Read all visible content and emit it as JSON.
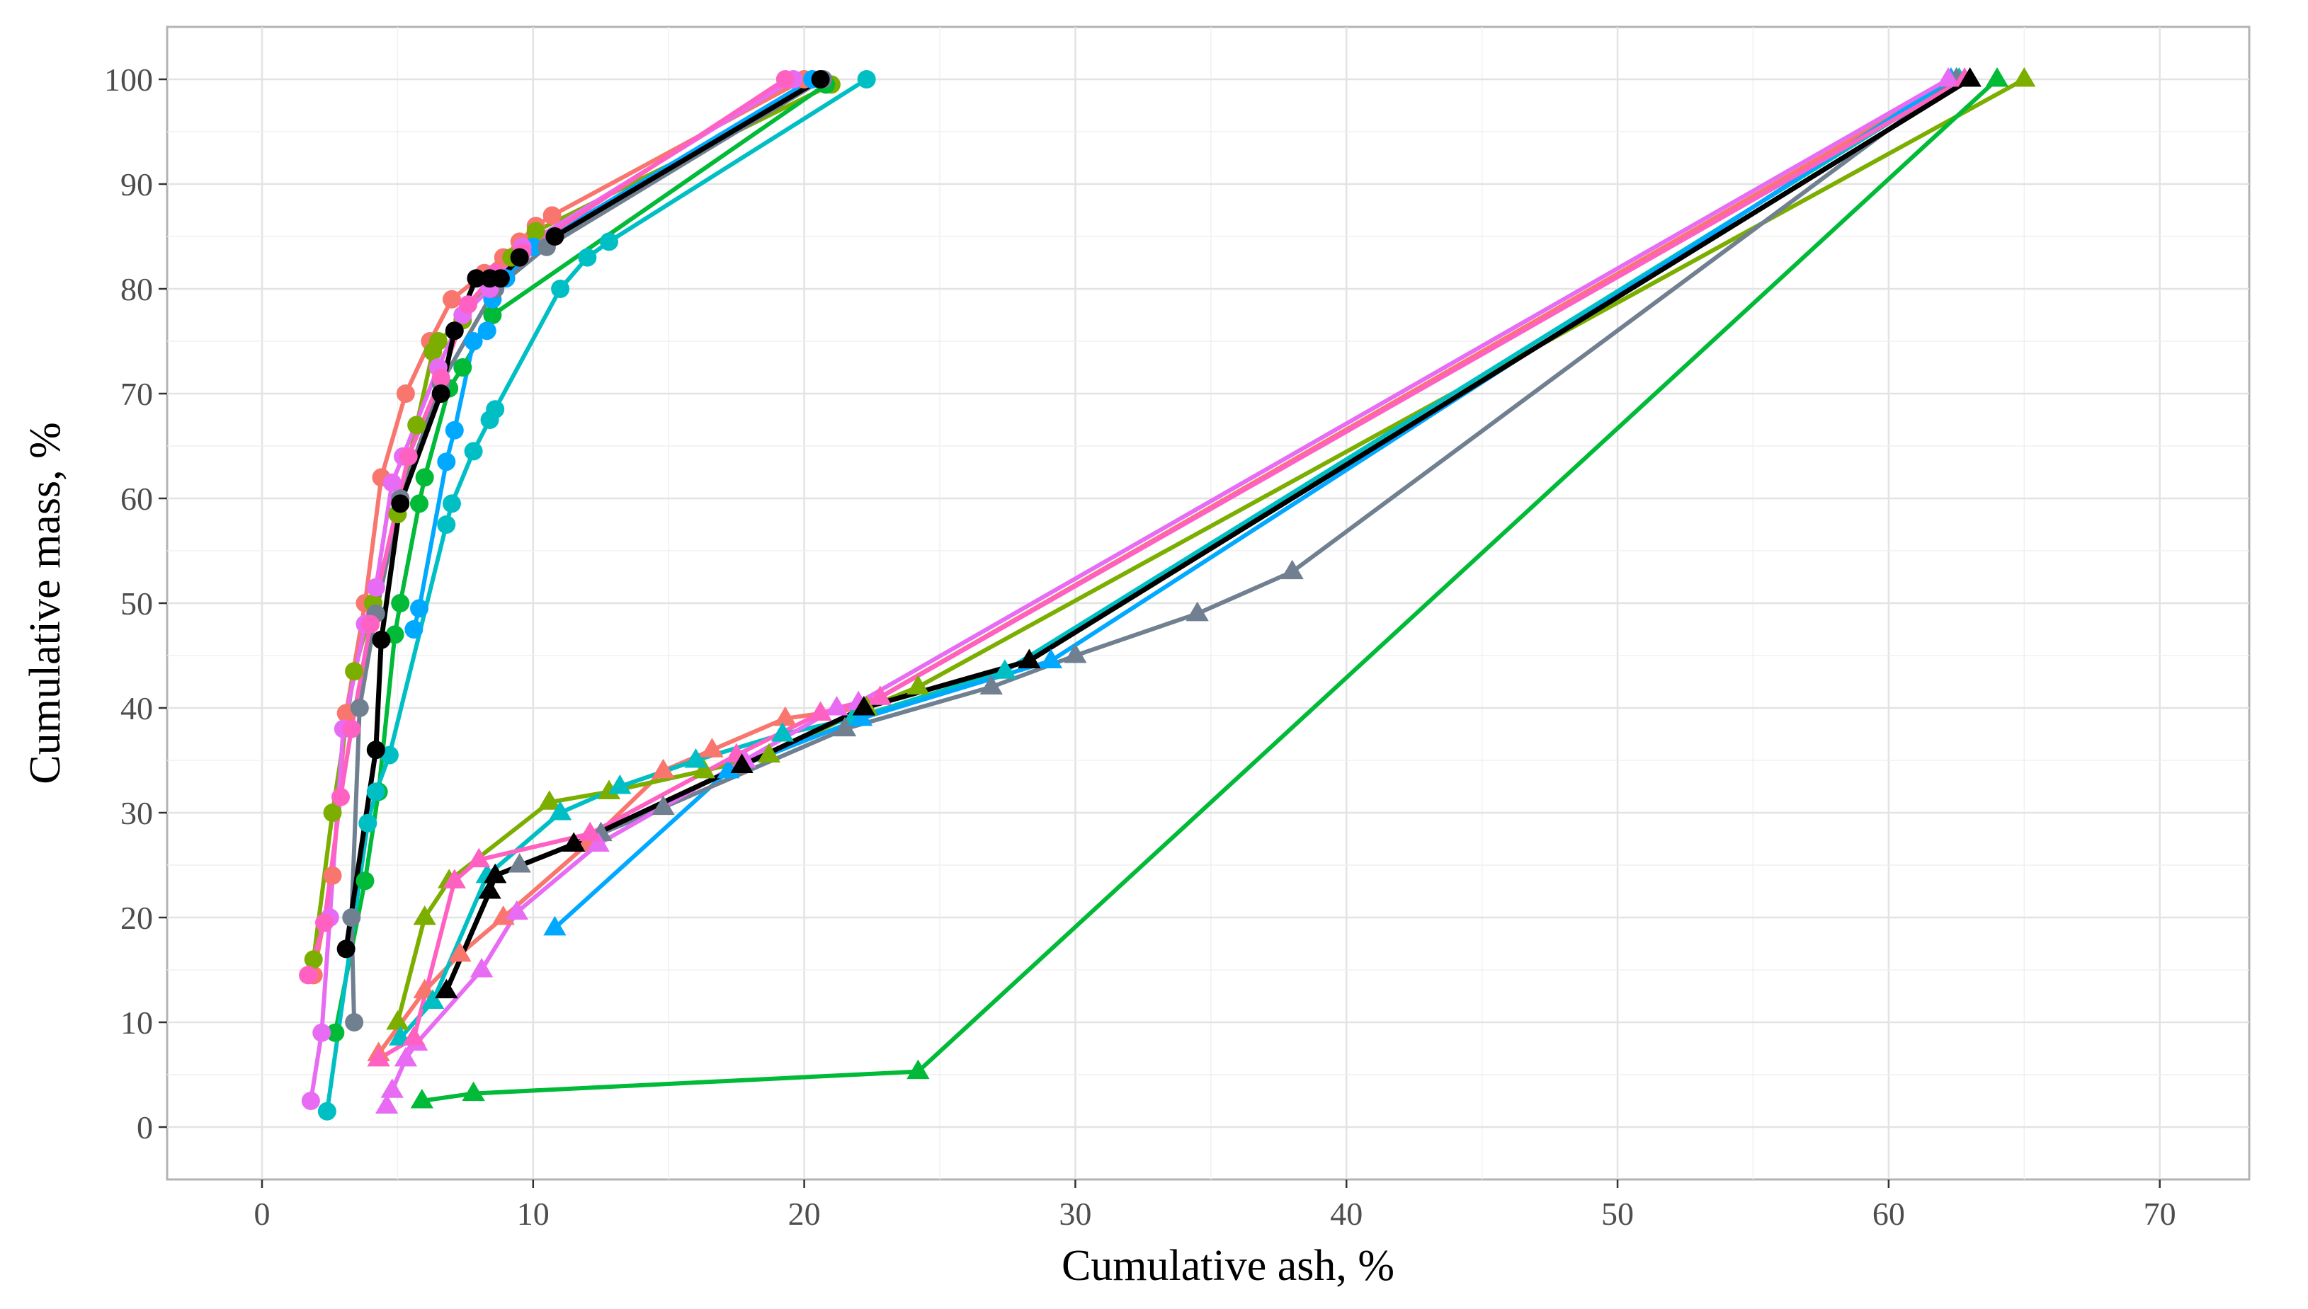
{
  "chart_data": {
    "type": "line",
    "title": "",
    "xlabel": "Cumulative ash, %",
    "ylabel": "Cumulative mass, %",
    "xlim": [
      -3.5,
      73.3
    ],
    "ylim": [
      -5,
      105
    ],
    "x_ticks": [
      0,
      10,
      20,
      30,
      40,
      50,
      60,
      70
    ],
    "y_ticks": [
      0,
      10,
      20,
      30,
      40,
      50,
      60,
      70,
      80,
      90,
      100
    ],
    "grid": true,
    "legend": "none",
    "series": [
      {
        "name": "sample-1-circle",
        "color": "#F8766D",
        "marker": "circle",
        "x": [
          1.9,
          2.6,
          3.1,
          3.8,
          4.4,
          5.3,
          6.2,
          7.0,
          8.2,
          8.9,
          9.5,
          10.1,
          10.7,
          20.0
        ],
        "y": [
          14.5,
          24.0,
          39.5,
          50.0,
          62.0,
          70.0,
          75.0,
          79.0,
          81.5,
          83.0,
          84.5,
          86.0,
          87.0,
          100
        ]
      },
      {
        "name": "sample-2-circle",
        "color": "#7CAE00",
        "marker": "circle",
        "x": [
          1.9,
          2.6,
          3.4,
          4.1,
          5.0,
          5.7,
          6.3,
          6.5,
          7.4,
          8.4,
          9.2,
          10.1,
          21.0
        ],
        "y": [
          16.0,
          30.0,
          43.5,
          50.0,
          58.5,
          67.0,
          74.0,
          75.0,
          77.0,
          80.5,
          83.0,
          85.5,
          99.5
        ]
      },
      {
        "name": "sample-3-circle",
        "color": "#00BA38",
        "marker": "circle",
        "x": [
          2.7,
          3.8,
          4.3,
          4.9,
          5.1,
          5.8,
          6.0,
          6.9,
          7.4,
          8.5,
          20.8
        ],
        "y": [
          9.0,
          23.5,
          32.0,
          47.0,
          50.0,
          59.5,
          62.0,
          70.5,
          72.5,
          77.5,
          99.5
        ]
      },
      {
        "name": "sample-4-circle",
        "color": "#00BFC4",
        "marker": "circle",
        "x": [
          2.4,
          3.9,
          4.2,
          4.7,
          6.8,
          7.0,
          7.8,
          8.4,
          8.6,
          11.0,
          12.0,
          12.8,
          22.3
        ],
        "y": [
          1.5,
          29.0,
          32.0,
          35.5,
          57.5,
          59.5,
          64.5,
          67.5,
          68.5,
          80.0,
          83.0,
          84.5,
          100
        ]
      },
      {
        "name": "sample-5-circle",
        "color": "#00A9FF",
        "marker": "circle",
        "x": [
          5.6,
          5.8,
          6.8,
          7.1,
          7.8,
          8.3,
          8.5,
          9.0,
          10.0,
          20.3
        ],
        "y": [
          47.5,
          49.5,
          63.5,
          66.5,
          75.0,
          76.0,
          79.0,
          81.0,
          84.0,
          100
        ]
      },
      {
        "name": "sample-6-circle",
        "color": "#708090",
        "marker": "circle",
        "x": [
          3.4,
          3.3,
          3.6,
          4.2,
          5.1,
          6.6,
          8.6,
          10.5,
          20.7
        ],
        "y": [
          10.0,
          20.0,
          40.0,
          49.0,
          60.0,
          71.0,
          80.0,
          84.0,
          100
        ]
      },
      {
        "name": "sample-7-circle",
        "color": "#E76BF3",
        "marker": "circle",
        "x": [
          1.8,
          2.2,
          2.5,
          3.0,
          3.8,
          4.2,
          4.8,
          5.2,
          6.5,
          7.4,
          8.4,
          9.6,
          19.6
        ],
        "y": [
          2.5,
          9.0,
          20.0,
          38.0,
          48.0,
          51.5,
          61.5,
          64.0,
          72.5,
          77.5,
          80.0,
          84.0,
          100
        ]
      },
      {
        "name": "sample-8-circle",
        "color": "#FF61C3",
        "marker": "circle",
        "x": [
          1.7,
          2.3,
          2.9,
          3.3,
          4.0,
          5.4,
          6.6,
          7.6,
          8.6,
          9.6,
          19.3
        ],
        "y": [
          14.5,
          19.5,
          31.5,
          38.0,
          48.0,
          64.0,
          71.5,
          78.5,
          81.5,
          83.5,
          100
        ]
      },
      {
        "name": "average-circle",
        "color": "#000000",
        "marker": "circle",
        "x": [
          3.1,
          4.2,
          4.4,
          5.1,
          6.6,
          7.1,
          7.9,
          8.4,
          8.8,
          9.5,
          10.8,
          20.6
        ],
        "y": [
          17.0,
          36.0,
          46.5,
          59.5,
          70.0,
          76.0,
          81.0,
          81.0,
          81.0,
          83.0,
          85.0,
          100
        ]
      },
      {
        "name": "sample-1-triangle",
        "color": "#F8766D",
        "marker": "triangle",
        "x": [
          4.3,
          6.0,
          7.3,
          8.9,
          12.0,
          14.8,
          16.6,
          19.3,
          22.1,
          62.5
        ],
        "y": [
          7.0,
          13.0,
          16.5,
          20.0,
          27.0,
          34.0,
          36.0,
          39.0,
          40.0,
          100
        ]
      },
      {
        "name": "sample-2-triangle",
        "color": "#7CAE00",
        "marker": "triangle",
        "x": [
          5.0,
          6.0,
          6.9,
          10.6,
          12.8,
          16.3,
          18.7,
          22.3,
          24.2,
          65.0
        ],
        "y": [
          10.0,
          20.0,
          23.5,
          31.0,
          32.0,
          34.0,
          35.5,
          40.0,
          42.0,
          100
        ]
      },
      {
        "name": "sample-3-triangle",
        "color": "#00BA38",
        "marker": "triangle",
        "x": [
          5.9,
          7.8,
          24.2,
          64.0
        ],
        "y": [
          2.5,
          3.2,
          5.3,
          100
        ]
      },
      {
        "name": "sample-4-triangle",
        "color": "#00BFC4",
        "marker": "triangle",
        "x": [
          5.1,
          6.3,
          8.3,
          11.0,
          13.2,
          16.0,
          19.2,
          21.8,
          27.4,
          62.6
        ],
        "y": [
          8.5,
          12.0,
          24.0,
          30.0,
          32.5,
          35.0,
          37.5,
          39.0,
          43.5,
          100
        ]
      },
      {
        "name": "sample-5-triangle",
        "color": "#00A9FF",
        "marker": "triangle",
        "x": [
          10.8,
          17.2,
          22.1,
          29.1,
          62.3
        ],
        "y": [
          19.0,
          34.0,
          39.0,
          44.5,
          100
        ]
      },
      {
        "name": "sample-6-triangle",
        "color": "#708090",
        "marker": "triangle",
        "x": [
          9.5,
          12.5,
          14.8,
          21.5,
          26.9,
          30.0,
          34.5,
          38.0,
          62.5
        ],
        "y": [
          25.0,
          28.0,
          30.5,
          38.0,
          42.0,
          45.0,
          49.0,
          53.0,
          100
        ]
      },
      {
        "name": "sample-7-triangle",
        "color": "#E76BF3",
        "marker": "triangle",
        "x": [
          4.8,
          5.3,
          5.7,
          8.1,
          9.4,
          12.4,
          17.8,
          21.2,
          22.0,
          62.2
        ],
        "y": [
          3.5,
          6.5,
          8.0,
          15.0,
          20.5,
          27.0,
          35.0,
          40.0,
          40.5,
          100
        ]
      },
      {
        "name": "sample-8-triangle",
        "color": "#FF61C3",
        "marker": "triangle",
        "x": [
          4.3,
          5.6,
          7.1,
          8.0,
          12.1,
          17.5,
          20.6,
          22.8,
          62.8
        ],
        "y": [
          6.5,
          8.5,
          23.5,
          25.5,
          28.0,
          35.5,
          39.5,
          41.0,
          100
        ]
      },
      {
        "name": "average-triangle",
        "color": "#000000",
        "marker": "triangle",
        "x": [
          6.8,
          8.4,
          8.6,
          11.5,
          17.7,
          22.2,
          28.3,
          63.0
        ],
        "y": [
          13.0,
          22.5,
          24.0,
          27.0,
          34.5,
          40.0,
          44.5,
          100
        ]
      },
      {
        "name": "extra-triangle-marker",
        "color": "#E76BF3",
        "marker": "triangle",
        "x": [
          4.6
        ],
        "y": [
          2.0
        ]
      }
    ]
  }
}
